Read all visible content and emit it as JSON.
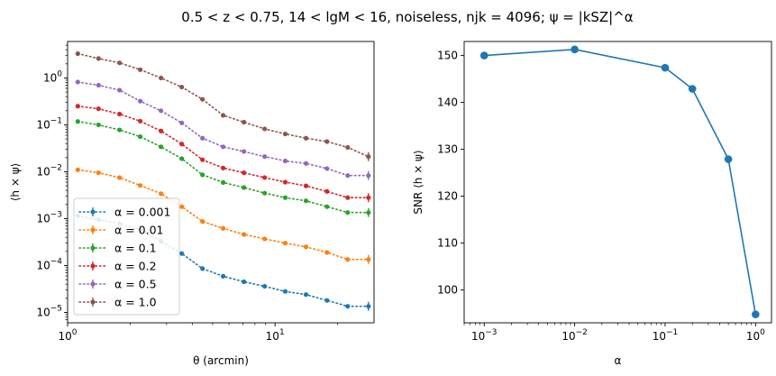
{
  "figure": {
    "title": "0.5 < z < 0.75, 14 < lgM < 16, noiseless, njk = 4096;  ψ = |kSZ|^α"
  },
  "chart_data": [
    {
      "type": "line",
      "panel": "left",
      "xlabel": "θ (arcmin)",
      "ylabel": "⟨h × ψ⟩",
      "xscale": "log",
      "yscale": "log",
      "xlim": [
        1.0,
        30.0
      ],
      "ylim": [
        6e-06,
        6.0
      ],
      "xticks": [
        {
          "value": 1,
          "label": "10^0"
        },
        {
          "value": 10,
          "label": "10^1"
        }
      ],
      "yticks": [
        {
          "value": 1e-05,
          "label": "10^−5"
        },
        {
          "value": 0.0001,
          "label": "10^−4"
        },
        {
          "value": 0.001,
          "label": "10^−3"
        },
        {
          "value": 0.01,
          "label": "10^−2"
        },
        {
          "value": 0.1,
          "label": "10^−1"
        },
        {
          "value": 1,
          "label": "10^0"
        }
      ],
      "grid": false,
      "linestyle": "dotted",
      "error_bars": true,
      "legend": "lower-left",
      "x": [
        1.12,
        1.41,
        1.78,
        2.24,
        2.82,
        3.55,
        4.47,
        5.62,
        7.08,
        8.91,
        11.2,
        14.1,
        17.8,
        22.4,
        28.2
      ],
      "series": [
        {
          "name": "α = 0.001",
          "color": "#1f77b4",
          "values": [
            0.00115,
            0.00095,
            0.00078,
            0.00058,
            0.00033,
            0.00018,
            8.6e-05,
            5.9e-05,
            4.5e-05,
            3.6e-05,
            2.8e-05,
            2.4e-05,
            1.8e-05,
            1.35e-05,
            1.35e-05
          ]
        },
        {
          "name": "α = 0.01",
          "color": "#ff7f0e",
          "values": [
            0.011,
            0.0095,
            0.0075,
            0.0051,
            0.0034,
            0.0018,
            0.00087,
            0.00062,
            0.00046,
            0.00037,
            0.0003,
            0.00025,
            0.00019,
            0.000135,
            0.000135
          ]
        },
        {
          "name": "α = 0.1",
          "color": "#2ca02c",
          "values": [
            0.118,
            0.1,
            0.078,
            0.056,
            0.034,
            0.019,
            0.0086,
            0.0059,
            0.0046,
            0.0035,
            0.0028,
            0.0024,
            0.0018,
            0.00135,
            0.00135
          ]
        },
        {
          "name": "α = 0.2",
          "color": "#d62728",
          "values": [
            0.25,
            0.22,
            0.17,
            0.12,
            0.074,
            0.039,
            0.018,
            0.012,
            0.0095,
            0.0075,
            0.006,
            0.005,
            0.0038,
            0.0028,
            0.0028
          ]
        },
        {
          "name": "α = 0.5",
          "color": "#9467bd",
          "values": [
            0.82,
            0.7,
            0.55,
            0.32,
            0.2,
            0.11,
            0.052,
            0.034,
            0.027,
            0.021,
            0.017,
            0.015,
            0.0117,
            0.0083,
            0.0083
          ]
        },
        {
          "name": "α = 1.0",
          "color": "#8c564b",
          "values": [
            3.3,
            2.6,
            2.1,
            1.5,
            1.0,
            0.64,
            0.35,
            0.16,
            0.114,
            0.082,
            0.064,
            0.052,
            0.044,
            0.033,
            0.021
          ]
        }
      ]
    },
    {
      "type": "line",
      "panel": "right",
      "xlabel": "α",
      "ylabel": "SNR ⟨h × ψ⟩",
      "xscale": "log",
      "yscale": "linear",
      "xlim": [
        0.0006,
        1.5
      ],
      "ylim": [
        93.0,
        153.0
      ],
      "xticks": [
        {
          "value": 0.001,
          "label": "10^−3"
        },
        {
          "value": 0.01,
          "label": "10^−2"
        },
        {
          "value": 0.1,
          "label": "10^−1"
        },
        {
          "value": 1,
          "label": "10^0"
        }
      ],
      "yticks": [
        100,
        110,
        120,
        130,
        140,
        150
      ],
      "grid": false,
      "color": "#1f77b4",
      "x": [
        0.001,
        0.01,
        0.1,
        0.2,
        0.5,
        1.0
      ],
      "y": [
        150.0,
        151.3,
        147.4,
        142.9,
        127.9,
        94.8
      ]
    }
  ]
}
